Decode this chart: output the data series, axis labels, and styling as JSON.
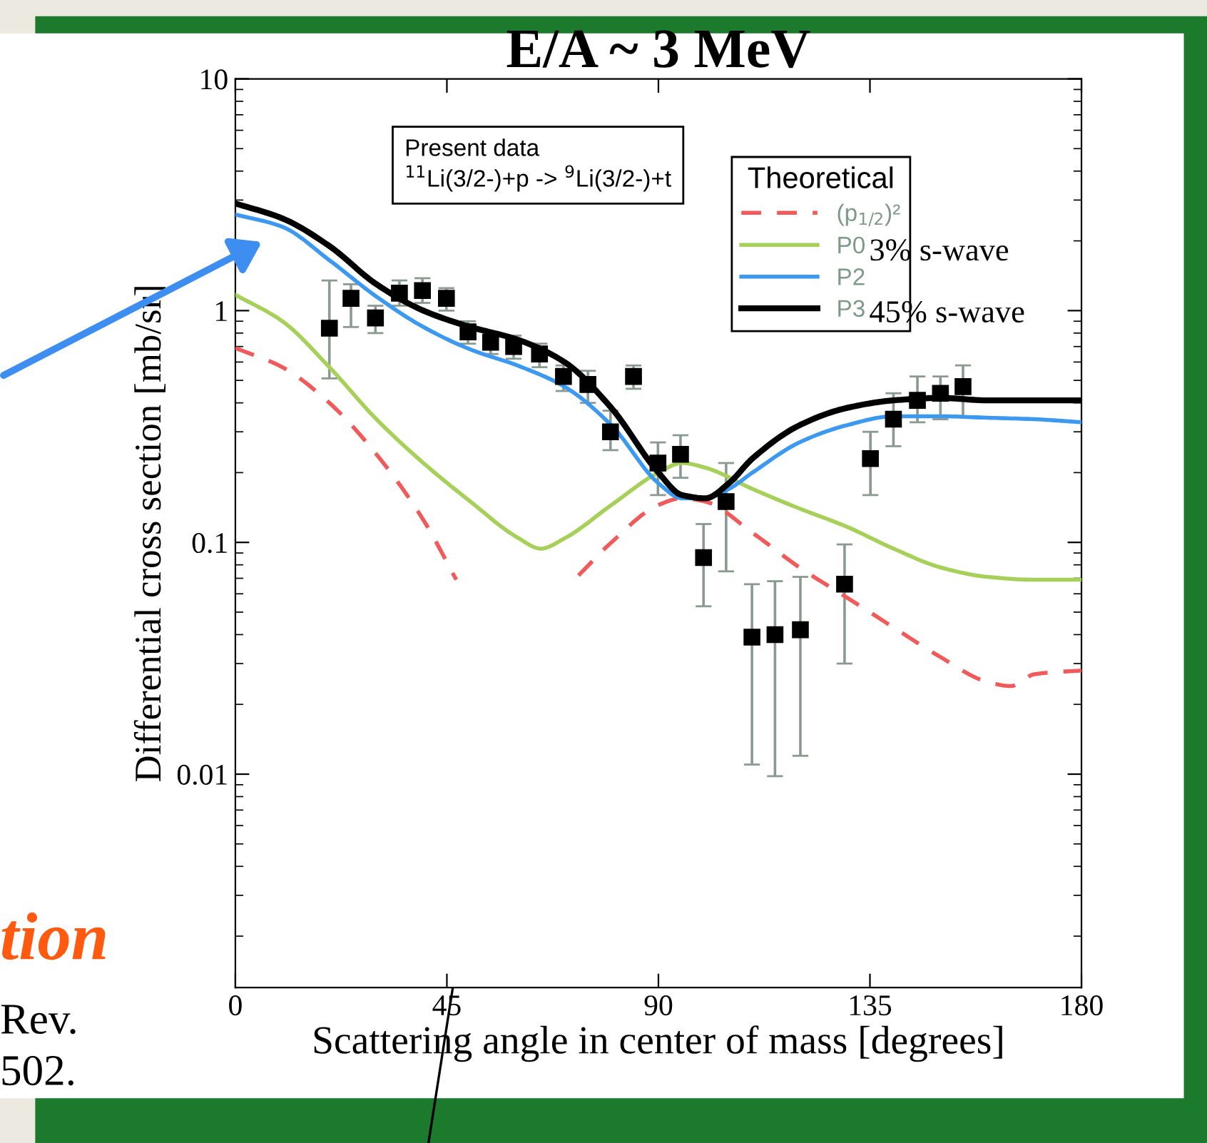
{
  "chart_data": {
    "type": "scatter",
    "title": "E/A ~ 3 MeV",
    "xlabel": "Scattering angle in center of mass [degrees]",
    "ylabel": "Differential cross section [mb/sr]",
    "legend_title": "Theoretical",
    "xlim": [
      0,
      180
    ],
    "xticks": [
      0,
      45,
      90,
      135,
      180
    ],
    "ylim": [
      0.0012,
      10
    ],
    "yticks": [
      0.01,
      0.1,
      1,
      10
    ],
    "log": "y",
    "grid": false,
    "legend": "top right",
    "x": [
      20.0,
      24.6,
      29.8,
      34.9,
      39.8,
      44.9,
      49.5,
      54.3,
      59.2,
      64.7,
      69.8,
      75.0,
      79.8,
      84.7,
      89.9,
      94.7,
      99.6,
      104.4,
      109.9,
      114.8,
      120.2,
      129.6,
      135.1,
      140.0,
      145.1,
      150.0,
      154.8
    ],
    "series": [
      {
        "color": "#000000",
        "marker": "square",
        "values": [
          0.84,
          1.13,
          0.93,
          1.19,
          1.22,
          1.13,
          0.81,
          0.73,
          0.7,
          0.65,
          0.52,
          0.48,
          0.3,
          0.52,
          0.22,
          0.24,
          0.086,
          0.15,
          0.039,
          0.04,
          0.042,
          0.066,
          0.23,
          0.34,
          0.41,
          0.44,
          0.47
        ],
        "errors": [
          [
            0.51,
            1.35
          ],
          [
            0.85,
            1.3
          ],
          [
            0.8,
            1.05
          ],
          [
            1.05,
            1.35
          ],
          [
            1.08,
            1.38
          ],
          [
            1.0,
            1.25
          ],
          [
            0.72,
            0.9
          ],
          [
            0.65,
            0.8
          ],
          [
            0.62,
            0.78
          ],
          [
            0.57,
            0.72
          ],
          [
            0.45,
            0.58
          ],
          [
            0.4,
            0.55
          ],
          [
            0.25,
            0.37
          ],
          [
            0.46,
            0.58
          ],
          [
            0.16,
            0.27
          ],
          [
            0.19,
            0.29
          ],
          [
            0.053,
            0.12
          ],
          [
            0.075,
            0.22
          ],
          [
            0.011,
            0.066
          ],
          [
            0.0098,
            0.068
          ],
          [
            0.012,
            0.071
          ],
          [
            0.03,
            0.098
          ],
          [
            0.16,
            0.3
          ],
          [
            0.26,
            0.44
          ],
          [
            0.33,
            0.52
          ],
          [
            0.34,
            0.52
          ],
          [
            0.35,
            0.58
          ]
        ]
      },
      {
        "type": "line",
        "name": "(p$_{1/2}$)²",
        "color": "#f05a5a",
        "line_style": "dashed",
        "x": [
          0,
          10,
          20,
          30,
          40,
          47,
          60,
          73,
          80,
          90,
          95,
          100,
          110,
          120,
          130,
          140,
          150,
          160,
          165,
          170,
          180
        ],
        "values": [
          0.69,
          0.57,
          0.4,
          0.24,
          0.125,
          0.069,
          null,
          0.072,
          0.1,
          0.145,
          0.155,
          0.15,
          0.11,
          0.078,
          0.058,
          0.043,
          0.032,
          0.025,
          0.024,
          0.027,
          0.028
        ]
      },
      {
        "type": "line",
        "name": "P0",
        "color": "#a6d05a",
        "line_style": "solid",
        "x": [
          0,
          10,
          20,
          30,
          40,
          50,
          60,
          65,
          70,
          80,
          90,
          95,
          100,
          110,
          120,
          130,
          140,
          150,
          160,
          170,
          180
        ],
        "values": [
          1.17,
          0.9,
          0.57,
          0.34,
          0.22,
          0.15,
          0.105,
          0.094,
          0.104,
          0.145,
          0.2,
          0.22,
          0.21,
          0.17,
          0.14,
          0.117,
          0.094,
          0.078,
          0.071,
          0.069,
          0.069
        ]
      },
      {
        "type": "line",
        "name": "P2",
        "color": "#3d98f0",
        "line_style": "solid",
        "x": [
          0,
          10,
          20,
          30,
          40,
          50,
          60,
          70,
          80,
          90,
          95,
          100,
          105,
          110,
          120,
          130,
          140,
          150,
          160,
          170,
          180
        ],
        "values": [
          2.6,
          2.3,
          1.65,
          1.15,
          0.85,
          0.68,
          0.58,
          0.47,
          0.32,
          0.18,
          0.155,
          0.155,
          0.17,
          0.2,
          0.27,
          0.32,
          0.35,
          0.35,
          0.345,
          0.34,
          0.33
        ]
      },
      {
        "type": "line",
        "name": "P3",
        "color": "#000000",
        "line_style": "solid",
        "x": [
          0,
          10,
          20,
          30,
          40,
          50,
          60,
          70,
          80,
          90,
          95,
          100,
          105,
          110,
          120,
          130,
          140,
          150,
          160,
          170,
          180
        ],
        "values": [
          2.9,
          2.5,
          1.9,
          1.3,
          1.0,
          0.85,
          0.75,
          0.6,
          0.38,
          0.2,
          0.16,
          0.155,
          0.18,
          0.23,
          0.32,
          0.38,
          0.41,
          0.42,
          0.41,
          0.41,
          0.41
        ]
      }
    ],
    "annotations": [
      "Present data\n$^{11}$Li(3/2-)+p -> $^{9}$Li(3/2-)+t",
      "3% s-wave",
      "45% s-wave",
      "tion",
      "Rev.",
      "502."
    ]
  }
}
